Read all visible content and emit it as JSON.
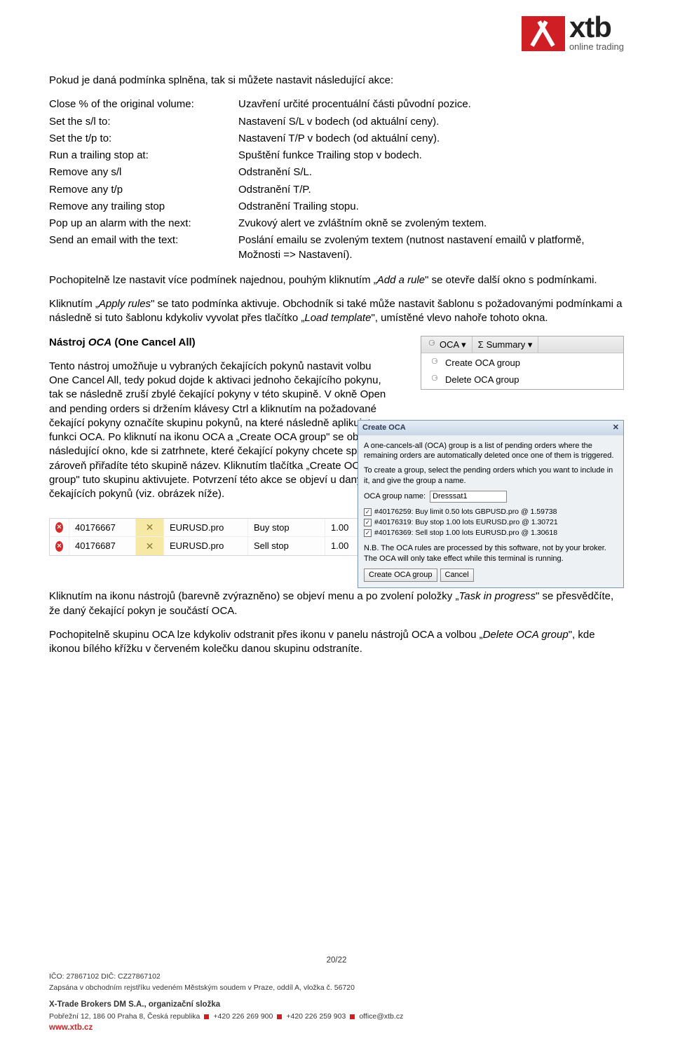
{
  "logo": {
    "text": "xtb",
    "subtitle": "online trading",
    "brand_color": "#cf1f25"
  },
  "intro": "Pokud je daná podmínka splněna, tak si můžete nastavit následující akce:",
  "definitions": [
    {
      "k": "Close % of the original volume:",
      "v": "Uzavření určité procentuální části původní pozice."
    },
    {
      "k": "Set the s/l to:",
      "v": "Nastavení S/L v bodech (od aktuální ceny)."
    },
    {
      "k": "Set the t/p to:",
      "v": "Nastavení T/P v bodech (od aktuální ceny)."
    },
    {
      "k": "Run a trailing stop at:",
      "v": "Spuštění funkce Trailing stop v bodech."
    },
    {
      "k": "Remove any s/l",
      "v": "Odstranění S/L."
    },
    {
      "k": "Remove any t/p",
      "v": "Odstranění T/P."
    },
    {
      "k": "Remove any trailing stop",
      "v": "Odstranění Trailing stopu."
    },
    {
      "k": "Pop up an alarm with the next:",
      "v": "Zvukový alert ve zvláštním okně se zvoleným textem."
    },
    {
      "k": "Send an email with the text:",
      "v": "Poslání emailu se zvoleným textem (nutnost nastavení emailů v platformě, Možnosti => Nastavení)."
    }
  ],
  "para1_a": "Pochopitelně lze nastavit více podmínek najednou, pouhým kliknutím „",
  "para1_i": "Add a rule",
  "para1_b": "\" se otevře další okno s podmínkami.",
  "para2_a": "Kliknutím „",
  "para2_i1": "Apply rules",
  "para2_b": "\" se tato podmínka aktivuje. Obchodník si také může nastavit šablonu s požadovanými podmínkami a následně si tuto šablonu kdykoliv vyvolat přes tlačítko „",
  "para2_i2": "Load template",
  "para2_c": "\", umístěné vlevo nahoře tohoto okna.",
  "section_a": "Nástroj ",
  "section_i": "OCA",
  "section_b": " (One Cancel All)",
  "oca_text": "Tento nástroj umožňuje u vybraných čekajících pokynů nastavit volbu One Cancel All, tedy pokud dojde k aktivaci jednoho čekajícího pokynu, tak se následně zruší zbylé čekající pokyny v této skupině. V okně Open and pending orders si držením klávesy Ctrl a kliknutím na požadované čekající pokyny označíte skupinu pokynů, na které následně aplikujete funkci OCA. Po kliknutí na ikonu OCA a „Create OCA group\" se objeví následující okno, kde si zatrhnete, které čekající pokyny chcete spojit a zároveň přiřadíte této skupině název. Kliknutím tlačítka „Create OCA group\" tuto skupinu aktivujete. Potvrzení této akce se objeví u daných čekajících pokynů (viz. obrázek níže).",
  "oca_menu": {
    "tab1": "OCA ▾",
    "tab2": "Summary ▾",
    "item1": "Create OCA group",
    "item2": "Delete OCA group"
  },
  "oca_dialog": {
    "title": "Create OCA",
    "p1": "A one-cancels-all (OCA) group is a list of pending orders where the remaining orders are automatically deleted once one of them is triggered.",
    "p2": "To create a group, select the pending orders which you want to include in it, and give the group a name.",
    "group_label": "OCA group name:",
    "group_value": "Dresssat1",
    "orders": [
      "#40176259: Buy limit 0.50 lots GBPUSD.pro @ 1.59738",
      "#40176319: Buy stop 1.00 lots EURUSD.pro @ 1.30721",
      "#40176369: Sell stop 1.00 lots EURUSD.pro @ 1.30618"
    ],
    "nb": "N.B. The OCA rules are processed by this software, not by your broker. The OCA will only take effect while this terminal is running.",
    "btn1": "Create OCA group",
    "btn2": "Cancel"
  },
  "orders_grid": [
    {
      "id": "40176667",
      "symbol": "EURUSD.pro",
      "type": "Buy stop",
      "vol": "1.00"
    },
    {
      "id": "40176687",
      "symbol": "EURUSD.pro",
      "type": "Sell stop",
      "vol": "1.00"
    }
  ],
  "after1_a": "Kliknutím na ikonu nástrojů (barevně zvýrazněno) se objeví menu a po zvolení položky „",
  "after1_i": "Task in progress",
  "after1_b": "\" se přesvědčíte, že daný čekající pokyn je součástí OCA.",
  "after2_a": "Pochopitelně skupinu OCA lze kdykoliv odstranit přes ikonu v panelu nástrojů OCA a volbou „",
  "after2_i": "Delete OCA group",
  "after2_b": "\", kde ikonou bílého křížku v červeném kolečku danou skupinu odstraníte.",
  "footer": {
    "page": "20/22",
    "ico": "IČO: 27867102 DIČ: CZ27867102",
    "reg": "Zapsána v obchodním rejstříku vedeném Městským soudem v Praze, oddíl A, vložka č. 56720",
    "company": "X-Trade Brokers DM S.A., organizační složka",
    "addr": "Pobřežní 12, 186 00 Praha 8, Česká republika",
    "tel1": "+420 226 269 900",
    "tel2": "+420 226 259 903",
    "email": "office@xtb.cz",
    "url": "www.xtb.cz"
  }
}
